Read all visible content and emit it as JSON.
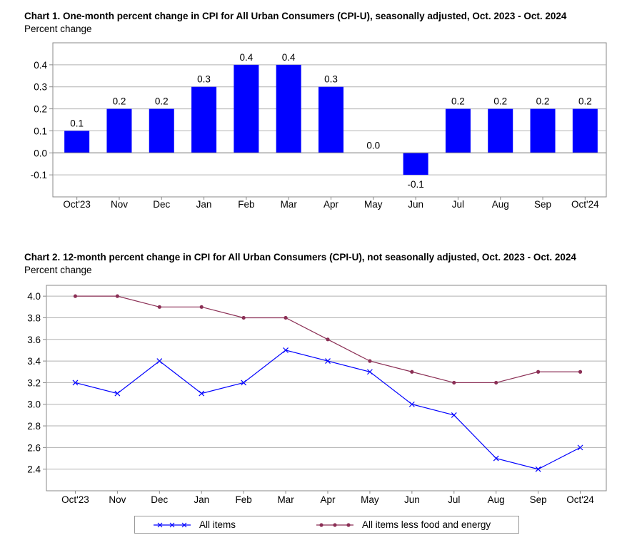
{
  "chart_data": [
    {
      "type": "bar",
      "title": "Chart 1. One-month percent change in CPI for All Urban Consumers (CPI-U), seasonally adjusted, Oct. 2023 - Oct. 2024",
      "subtitle": "Percent change",
      "categories": [
        "Oct'23",
        "Nov",
        "Dec",
        "Jan",
        "Feb",
        "Mar",
        "Apr",
        "May",
        "Jun",
        "Jul",
        "Aug",
        "Sep",
        "Oct'24"
      ],
      "values": [
        0.1,
        0.2,
        0.2,
        0.3,
        0.4,
        0.4,
        0.3,
        0.0,
        -0.1,
        0.2,
        0.2,
        0.2,
        0.2
      ],
      "data_labels": [
        "0.1",
        "0.2",
        "0.2",
        "0.3",
        "0.4",
        "0.4",
        "0.3",
        "0.0",
        "-0.1",
        "0.2",
        "0.2",
        "0.2",
        "0.2"
      ],
      "yticks": [
        "0.4",
        "0.3",
        "0.2",
        "0.1",
        "0.0",
        "-0.1"
      ],
      "ylim": [
        -0.2,
        0.5
      ],
      "bar_color": "#0000ff",
      "grid": true
    },
    {
      "type": "line",
      "title": "Chart 2. 12-month percent change in CPI for All Urban Consumers (CPI-U), not seasonally adjusted, Oct. 2023 - Oct. 2024",
      "subtitle": "Percent change",
      "categories": [
        "Oct'23",
        "Nov",
        "Dec",
        "Jan",
        "Feb",
        "Mar",
        "Apr",
        "May",
        "Jun",
        "Jul",
        "Aug",
        "Sep",
        "Oct'24"
      ],
      "series": [
        {
          "name": "All items",
          "values": [
            3.2,
            3.1,
            3.4,
            3.1,
            3.2,
            3.5,
            3.4,
            3.3,
            3.0,
            2.9,
            2.5,
            2.4,
            2.6
          ],
          "color": "#0000ff",
          "marker": "x"
        },
        {
          "name": "All items less food and energy",
          "values": [
            4.0,
            4.0,
            3.9,
            3.9,
            3.8,
            3.8,
            3.6,
            3.4,
            3.3,
            3.2,
            3.2,
            3.3,
            3.3
          ],
          "color": "#8b2f55",
          "marker": "dot"
        }
      ],
      "yticks": [
        "4.0",
        "3.8",
        "3.6",
        "3.4",
        "3.2",
        "3.0",
        "2.8",
        "2.6",
        "2.4"
      ],
      "ylim": [
        2.2,
        4.1
      ],
      "grid": true,
      "legend_position": "bottom"
    }
  ]
}
